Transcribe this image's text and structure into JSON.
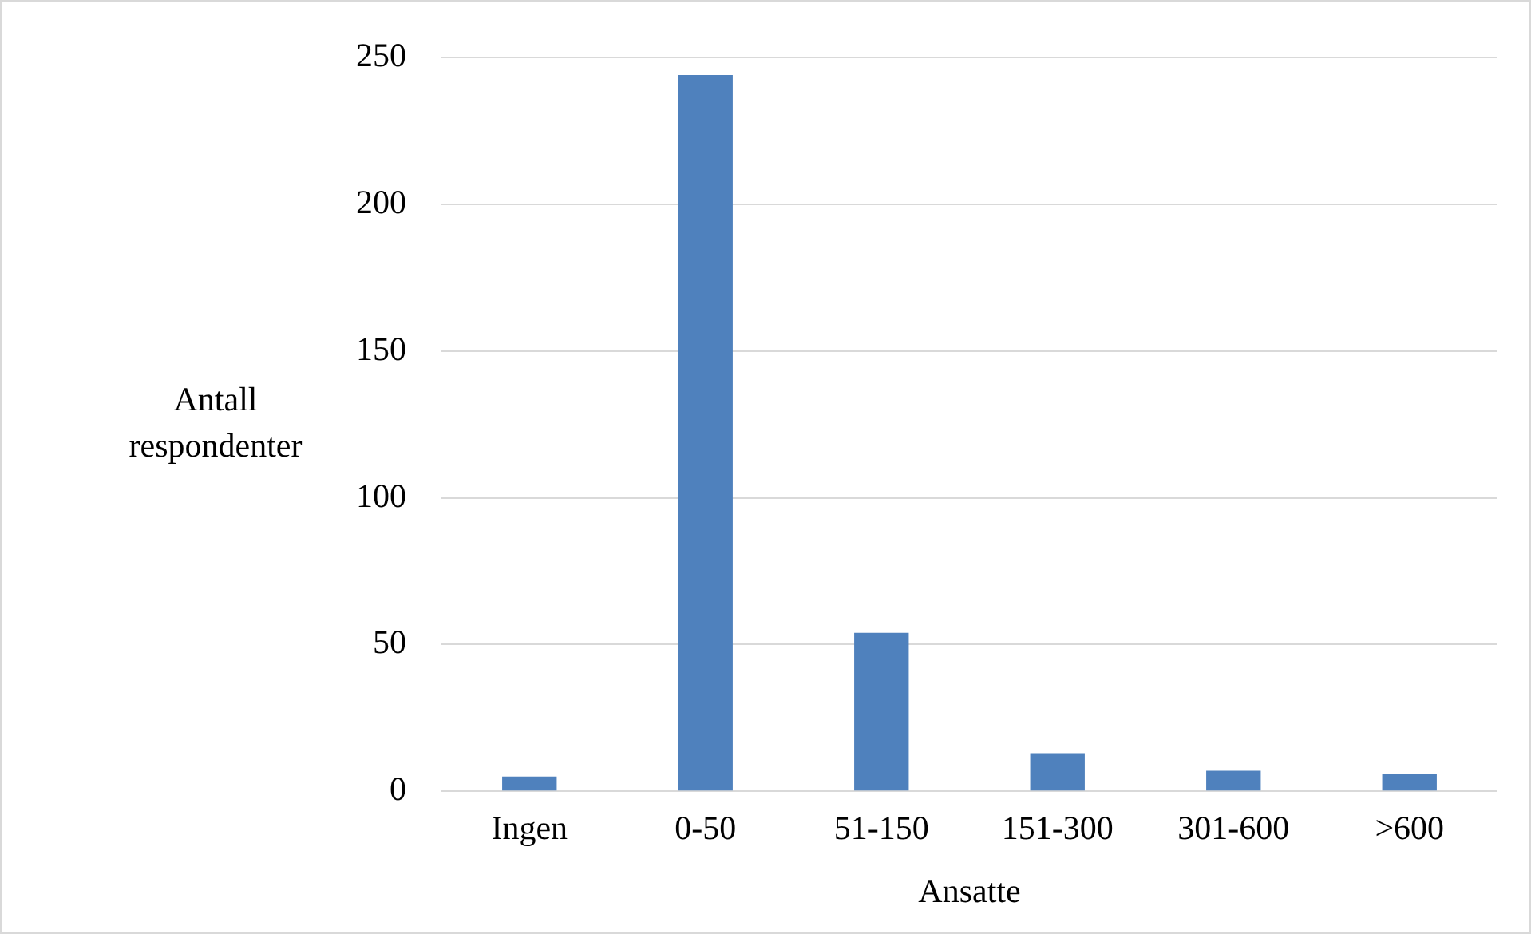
{
  "chart_data": {
    "type": "bar",
    "categories": [
      "Ingen",
      "0-50",
      "51-150",
      "151-300",
      "301-600",
      ">600"
    ],
    "values": [
      5,
      244,
      54,
      13,
      7,
      6
    ],
    "color": "#4f81bd",
    "xlabel": "Ansatte",
    "ylabel": "Antall respondenter",
    "ylim": [
      0,
      250
    ],
    "yticks": [
      0,
      50,
      100,
      150,
      200,
      250
    ],
    "grid": "y",
    "legend": false
  }
}
